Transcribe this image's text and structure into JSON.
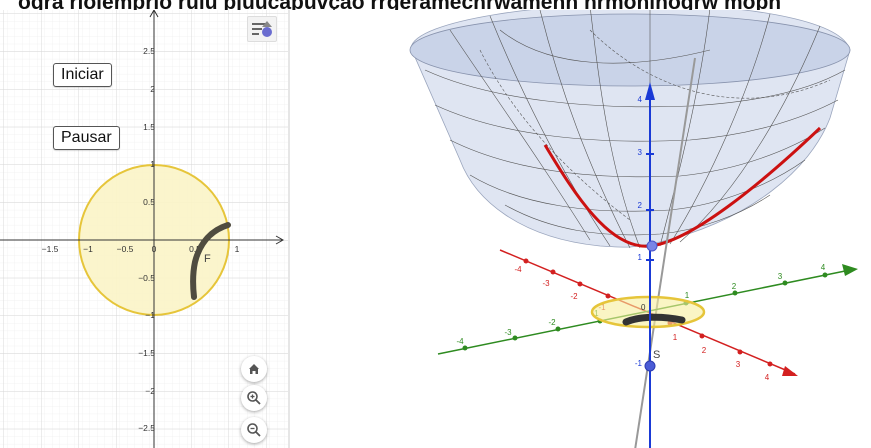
{
  "header": {
    "title": "ogra rioiemprlo ruiu pjuucapuvçao rrgeramecnrwamenn nrmoninogrw mopn"
  },
  "graphics2d": {
    "buttons": {
      "start_label": "Iniciar",
      "pause_label": "Pausar"
    },
    "x_ticks": [
      "−1.5",
      "−1",
      "−0.5",
      "0",
      "0.5",
      "1"
    ],
    "y_ticks": [
      "2.5",
      "2",
      "1.5",
      "1",
      "0.5",
      "−0.5",
      "−1",
      "−1.5",
      "−2",
      "−2.5"
    ],
    "point_label": "F",
    "circle_color": "#e6c53a",
    "circle_fill": "#fbf4c6",
    "trace_color": "#4f4c40",
    "icons": [
      "home-icon",
      "zoom-in-icon",
      "zoom-out-icon",
      "style-bar-icon"
    ]
  },
  "graphics3d": {
    "z_ticks": [
      "4",
      "3",
      "2",
      "1",
      "-1"
    ],
    "red_axis_ticks": [
      "-4",
      "-3",
      "-2",
      "-1",
      "1",
      "2",
      "3",
      "4"
    ],
    "green_axis_ticks": [
      "-4",
      "-3",
      "-2",
      "-1",
      "1",
      "2",
      "3",
      "4"
    ],
    "origin_label": "0",
    "point_label": "S",
    "axis_colors": {
      "x": "#d32020",
      "y": "#2e8b20",
      "z": "#1a3ad6"
    },
    "surface_color": "#dfe5f2",
    "curve_color": "#cc1111",
    "circle_color": "#e6c53a"
  }
}
